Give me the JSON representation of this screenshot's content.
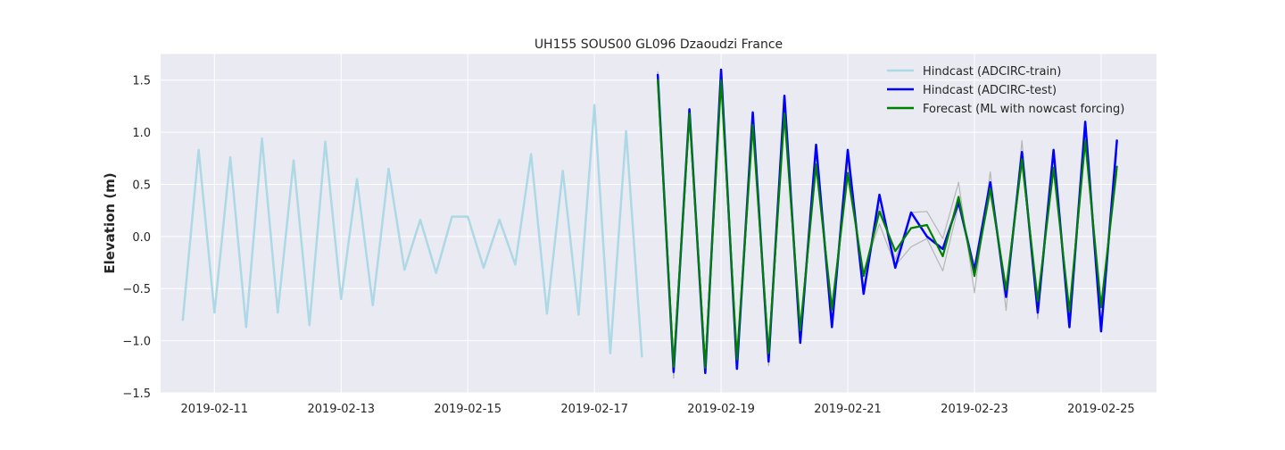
{
  "chart_data": {
    "type": "line",
    "title": "UH155 SOUS00 GL096 Dzaoudzi France",
    "xlabel": "",
    "ylabel": "Elevation (m)",
    "x_axis_type": "date",
    "xlim": [
      "2019-02-10 03:36",
      "2019-02-25 21:00"
    ],
    "ylim": [
      -1.5,
      1.75
    ],
    "xticks": [
      "2019-02-11",
      "2019-02-13",
      "2019-02-15",
      "2019-02-17",
      "2019-02-19",
      "2019-02-21",
      "2019-02-23",
      "2019-02-25"
    ],
    "yticks": [
      -1.5,
      -1.0,
      -0.5,
      0.0,
      0.5,
      1.0,
      1.5
    ],
    "ytick_labels": [
      "−1.5",
      "−1.0",
      "−0.5",
      "0.0",
      "0.5",
      "1.0",
      "1.5"
    ],
    "grid": true,
    "legend_position": "upper right",
    "colors": {
      "background": "#eaeaf2",
      "grid": "#ffffff",
      "train": "#add8e6",
      "test": "#0000ff",
      "forecast": "#008000",
      "ensemble": "#a9a9a9"
    },
    "series": [
      {
        "name": "Hindcast (ADCIRC-train)",
        "color": "#add8e6",
        "points": [
          [
            "2019-02-10 12:00",
            -0.8
          ],
          [
            "2019-02-10 18:00",
            0.83
          ],
          [
            "2019-02-11 00:00",
            -0.73
          ],
          [
            "2019-02-11 06:00",
            0.76
          ],
          [
            "2019-02-11 12:00",
            -0.87
          ],
          [
            "2019-02-11 18:00",
            0.94
          ],
          [
            "2019-02-12 00:00",
            -0.73
          ],
          [
            "2019-02-12 06:00",
            0.73
          ],
          [
            "2019-02-12 12:00",
            -0.85
          ],
          [
            "2019-02-12 18:00",
            0.91
          ],
          [
            "2019-02-13 00:00",
            -0.6
          ],
          [
            "2019-02-13 06:00",
            0.55
          ],
          [
            "2019-02-13 12:00",
            -0.66
          ],
          [
            "2019-02-13 18:00",
            0.65
          ],
          [
            "2019-02-14 00:00",
            -0.32
          ],
          [
            "2019-02-14 06:00",
            0.16
          ],
          [
            "2019-02-14 12:00",
            -0.35
          ],
          [
            "2019-02-14 18:00",
            0.19
          ],
          [
            "2019-02-15 00:00",
            0.19
          ],
          [
            "2019-02-15 06:00",
            -0.3
          ],
          [
            "2019-02-15 12:00",
            0.16
          ],
          [
            "2019-02-15 18:00",
            -0.27
          ],
          [
            "2019-02-16 00:00",
            0.79
          ],
          [
            "2019-02-16 06:00",
            -0.74
          ],
          [
            "2019-02-16 12:00",
            0.63
          ],
          [
            "2019-02-16 18:00",
            -0.75
          ],
          [
            "2019-02-17 00:00",
            1.26
          ],
          [
            "2019-02-17 06:00",
            -1.12
          ],
          [
            "2019-02-17 12:00",
            1.01
          ],
          [
            "2019-02-17 18:00",
            -1.15
          ]
        ]
      },
      {
        "name": "Hindcast (ADCIRC-test)",
        "color": "#0000ff",
        "points": [
          [
            "2019-02-18 00:00",
            1.55
          ],
          [
            "2019-02-18 06:00",
            -1.3
          ],
          [
            "2019-02-18 12:00",
            1.22
          ],
          [
            "2019-02-18 18:00",
            -1.31
          ],
          [
            "2019-02-19 00:00",
            1.6
          ],
          [
            "2019-02-19 06:00",
            -1.27
          ],
          [
            "2019-02-19 12:00",
            1.19
          ],
          [
            "2019-02-19 18:00",
            -1.2
          ],
          [
            "2019-02-20 00:00",
            1.35
          ],
          [
            "2019-02-20 06:00",
            -1.02
          ],
          [
            "2019-02-20 12:00",
            0.88
          ],
          [
            "2019-02-20 18:00",
            -0.87
          ],
          [
            "2019-02-21 00:00",
            0.83
          ],
          [
            "2019-02-21 06:00",
            -0.55
          ],
          [
            "2019-02-21 12:00",
            0.4
          ],
          [
            "2019-02-21 18:00",
            -0.3
          ],
          [
            "2019-02-22 00:00",
            0.23
          ],
          [
            "2019-02-22 06:00",
            0.0
          ],
          [
            "2019-02-22 12:00",
            -0.12
          ],
          [
            "2019-02-22 18:00",
            0.33
          ],
          [
            "2019-02-23 00:00",
            -0.32
          ],
          [
            "2019-02-23 06:00",
            0.52
          ],
          [
            "2019-02-23 12:00",
            -0.58
          ],
          [
            "2019-02-23 18:00",
            0.81
          ],
          [
            "2019-02-24 00:00",
            -0.73
          ],
          [
            "2019-02-24 06:00",
            0.83
          ],
          [
            "2019-02-24 12:00",
            -0.87
          ],
          [
            "2019-02-24 18:00",
            1.1
          ],
          [
            "2019-02-25 00:00",
            -0.91
          ],
          [
            "2019-02-25 06:00",
            0.92
          ]
        ]
      },
      {
        "name": "Forecast (ML with nowcast forcing)",
        "color": "#008000",
        "points": [
          [
            "2019-02-18 00:00",
            1.5
          ],
          [
            "2019-02-18 06:00",
            -1.25
          ],
          [
            "2019-02-18 12:00",
            1.18
          ],
          [
            "2019-02-18 18:00",
            -1.26
          ],
          [
            "2019-02-19 00:00",
            1.5
          ],
          [
            "2019-02-19 06:00",
            -1.18
          ],
          [
            "2019-02-19 12:00",
            1.07
          ],
          [
            "2019-02-19 18:00",
            -1.12
          ],
          [
            "2019-02-20 00:00",
            1.18
          ],
          [
            "2019-02-20 06:00",
            -0.9
          ],
          [
            "2019-02-20 12:00",
            0.69
          ],
          [
            "2019-02-20 18:00",
            -0.7
          ],
          [
            "2019-02-21 00:00",
            0.61
          ],
          [
            "2019-02-21 06:00",
            -0.38
          ],
          [
            "2019-02-21 12:00",
            0.24
          ],
          [
            "2019-02-21 18:00",
            -0.14
          ],
          [
            "2019-02-22 00:00",
            0.08
          ],
          [
            "2019-02-22 06:00",
            0.11
          ],
          [
            "2019-02-22 12:00",
            -0.19
          ],
          [
            "2019-02-22 18:00",
            0.38
          ],
          [
            "2019-02-23 00:00",
            -0.38
          ],
          [
            "2019-02-23 06:00",
            0.46
          ],
          [
            "2019-02-23 12:00",
            -0.51
          ],
          [
            "2019-02-23 18:00",
            0.74
          ],
          [
            "2019-02-24 00:00",
            -0.62
          ],
          [
            "2019-02-24 06:00",
            0.66
          ],
          [
            "2019-02-24 12:00",
            -0.72
          ],
          [
            "2019-02-24 18:00",
            0.92
          ],
          [
            "2019-02-25 00:00",
            -0.68
          ],
          [
            "2019-02-25 06:00",
            0.67
          ]
        ]
      }
    ],
    "ensemble_members": [
      {
        "color": "#a9a9a9",
        "points": [
          [
            "2019-02-18 00:00",
            1.58
          ],
          [
            "2019-02-18 06:00",
            -1.36
          ],
          [
            "2019-02-18 12:00",
            1.22
          ],
          [
            "2019-02-18 18:00",
            -1.29
          ],
          [
            "2019-02-19 00:00",
            1.55
          ],
          [
            "2019-02-19 06:00",
            -1.24
          ],
          [
            "2019-02-19 12:00",
            1.15
          ],
          [
            "2019-02-19 18:00",
            -1.24
          ],
          [
            "2019-02-20 00:00",
            1.27
          ],
          [
            "2019-02-20 06:00",
            -0.97
          ],
          [
            "2019-02-20 12:00",
            0.8
          ],
          [
            "2019-02-20 18:00",
            -0.8
          ],
          [
            "2019-02-21 00:00",
            0.72
          ],
          [
            "2019-02-21 06:00",
            -0.5
          ],
          [
            "2019-02-21 12:00",
            0.29
          ],
          [
            "2019-02-21 18:00",
            -0.22
          ],
          [
            "2019-02-22 00:00",
            0.23
          ],
          [
            "2019-02-22 06:00",
            0.24
          ],
          [
            "2019-02-22 12:00",
            -0.02
          ],
          [
            "2019-02-22 18:00",
            0.52
          ],
          [
            "2019-02-23 00:00",
            -0.54
          ],
          [
            "2019-02-23 06:00",
            0.62
          ],
          [
            "2019-02-23 12:00",
            -0.71
          ],
          [
            "2019-02-23 18:00",
            0.92
          ],
          [
            "2019-02-24 00:00",
            -0.79
          ],
          [
            "2019-02-24 06:00",
            0.78
          ],
          [
            "2019-02-24 12:00",
            -0.82
          ],
          [
            "2019-02-24 18:00",
            1.05
          ],
          [
            "2019-02-25 00:00",
            -0.85
          ],
          [
            "2019-02-25 06:00",
            0.8
          ]
        ]
      },
      {
        "color": "#a9a9a9",
        "points": [
          [
            "2019-02-18 00:00",
            1.48
          ],
          [
            "2019-02-18 06:00",
            -1.22
          ],
          [
            "2019-02-18 12:00",
            1.15
          ],
          [
            "2019-02-18 18:00",
            -1.24
          ],
          [
            "2019-02-19 00:00",
            1.45
          ],
          [
            "2019-02-19 06:00",
            -1.15
          ],
          [
            "2019-02-19 12:00",
            1.02
          ],
          [
            "2019-02-19 18:00",
            -1.08
          ],
          [
            "2019-02-20 00:00",
            1.12
          ],
          [
            "2019-02-20 06:00",
            -0.85
          ],
          [
            "2019-02-20 12:00",
            0.65
          ],
          [
            "2019-02-20 18:00",
            -0.65
          ],
          [
            "2019-02-21 00:00",
            0.55
          ],
          [
            "2019-02-21 06:00",
            -0.33
          ],
          [
            "2019-02-21 12:00",
            0.12
          ],
          [
            "2019-02-21 18:00",
            -0.28
          ],
          [
            "2019-02-22 00:00",
            -0.1
          ],
          [
            "2019-02-22 06:00",
            -0.02
          ],
          [
            "2019-02-22 12:00",
            -0.33
          ],
          [
            "2019-02-22 18:00",
            0.3
          ],
          [
            "2019-02-23 00:00",
            -0.34
          ],
          [
            "2019-02-23 06:00",
            0.4
          ],
          [
            "2019-02-23 12:00",
            -0.47
          ],
          [
            "2019-02-23 18:00",
            0.68
          ],
          [
            "2019-02-24 00:00",
            -0.58
          ],
          [
            "2019-02-24 06:00",
            0.62
          ],
          [
            "2019-02-24 12:00",
            -0.68
          ],
          [
            "2019-02-24 18:00",
            0.88
          ],
          [
            "2019-02-25 00:00",
            -0.64
          ],
          [
            "2019-02-25 06:00",
            0.6
          ]
        ]
      }
    ]
  }
}
